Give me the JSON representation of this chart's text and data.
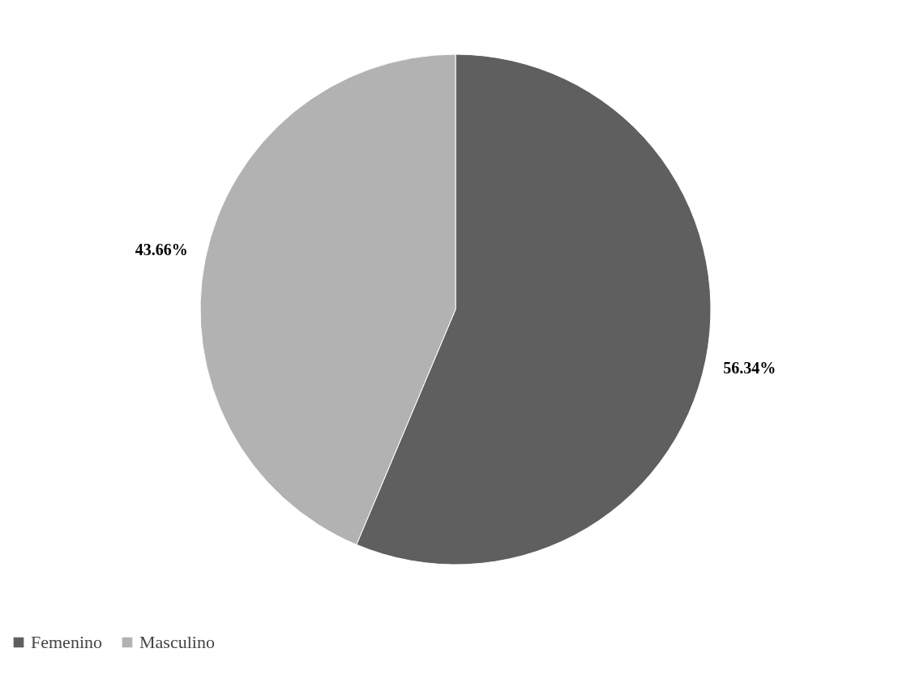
{
  "chart_data": {
    "type": "pie",
    "categories": [
      "Femenino",
      "Masculino"
    ],
    "values": [
      56.34,
      43.66
    ],
    "colors": [
      "#5f5f5f",
      "#b2b2b2"
    ],
    "value_labels": [
      "56.34%",
      "43.66%"
    ],
    "legend": "bottom"
  }
}
